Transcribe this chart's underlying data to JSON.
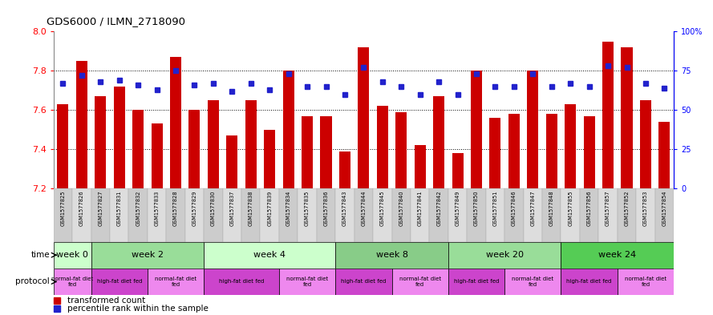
{
  "title": "GDS6000 / ILMN_2718090",
  "samples": [
    "GSM1577825",
    "GSM1577826",
    "GSM1577827",
    "GSM1577831",
    "GSM1577832",
    "GSM1577833",
    "GSM1577828",
    "GSM1577829",
    "GSM1577830",
    "GSM1577837",
    "GSM1577838",
    "GSM1577839",
    "GSM1577834",
    "GSM1577835",
    "GSM1577836",
    "GSM1577843",
    "GSM1577844",
    "GSM1577845",
    "GSM1577840",
    "GSM1577841",
    "GSM1577842",
    "GSM1577849",
    "GSM1577850",
    "GSM1577851",
    "GSM1577846",
    "GSM1577847",
    "GSM1577848",
    "GSM1577855",
    "GSM1577856",
    "GSM1577857",
    "GSM1577852",
    "GSM1577853",
    "GSM1577854"
  ],
  "bar_values": [
    7.63,
    7.85,
    7.67,
    7.72,
    7.6,
    7.53,
    7.87,
    7.6,
    7.65,
    7.47,
    7.65,
    7.5,
    7.8,
    7.57,
    7.57,
    7.39,
    7.92,
    7.62,
    7.59,
    7.42,
    7.67,
    7.38,
    7.8,
    7.56,
    7.58,
    7.8,
    7.58,
    7.63,
    7.57,
    7.95,
    7.92,
    7.65,
    7.54
  ],
  "dot_values": [
    67,
    72,
    68,
    69,
    66,
    63,
    75,
    66,
    67,
    62,
    67,
    63,
    73,
    65,
    65,
    60,
    77,
    68,
    65,
    60,
    68,
    60,
    73,
    65,
    65,
    73,
    65,
    67,
    65,
    78,
    77,
    67,
    64
  ],
  "ylim_left": [
    7.2,
    8.0
  ],
  "ylim_right": [
    0,
    100
  ],
  "yticks_left": [
    7.2,
    7.4,
    7.6,
    7.8,
    8.0
  ],
  "yticks_right": [
    0,
    25,
    50,
    75,
    100
  ],
  "bar_color": "#cc0000",
  "dot_color": "#2222cc",
  "time_groups": [
    {
      "label": "week 0",
      "start": 0,
      "end": 2,
      "color": "#ccffcc"
    },
    {
      "label": "week 2",
      "start": 2,
      "end": 8,
      "color": "#99dd99"
    },
    {
      "label": "week 4",
      "start": 8,
      "end": 15,
      "color": "#ccffcc"
    },
    {
      "label": "week 8",
      "start": 15,
      "end": 21,
      "color": "#88cc88"
    },
    {
      "label": "week 20",
      "start": 21,
      "end": 27,
      "color": "#99dd99"
    },
    {
      "label": "week 24",
      "start": 27,
      "end": 33,
      "color": "#55cc55"
    }
  ],
  "protocol_groups": [
    {
      "label": "normal-fat diet\nfed",
      "start": 0,
      "end": 2,
      "color": "#ee88ee"
    },
    {
      "label": "high-fat diet fed",
      "start": 2,
      "end": 5,
      "color": "#cc44cc"
    },
    {
      "label": "normal-fat diet\nfed",
      "start": 5,
      "end": 8,
      "color": "#ee88ee"
    },
    {
      "label": "high-fat diet fed",
      "start": 8,
      "end": 12,
      "color": "#cc44cc"
    },
    {
      "label": "normal-fat diet\nfed",
      "start": 12,
      "end": 15,
      "color": "#ee88ee"
    },
    {
      "label": "high-fat diet fed",
      "start": 15,
      "end": 18,
      "color": "#cc44cc"
    },
    {
      "label": "normal-fat diet\nfed",
      "start": 18,
      "end": 21,
      "color": "#ee88ee"
    },
    {
      "label": "high-fat diet fed",
      "start": 21,
      "end": 24,
      "color": "#cc44cc"
    },
    {
      "label": "normal-fat diet\nfed",
      "start": 24,
      "end": 27,
      "color": "#ee88ee"
    },
    {
      "label": "high-fat diet fed",
      "start": 27,
      "end": 30,
      "color": "#cc44cc"
    },
    {
      "label": "normal-fat diet\nfed",
      "start": 30,
      "end": 33,
      "color": "#ee88ee"
    }
  ],
  "legend_items": [
    {
      "label": "transformed count",
      "color": "#cc0000",
      "marker": "s"
    },
    {
      "label": "percentile rank within the sample",
      "color": "#2222cc",
      "marker": "s"
    }
  ]
}
